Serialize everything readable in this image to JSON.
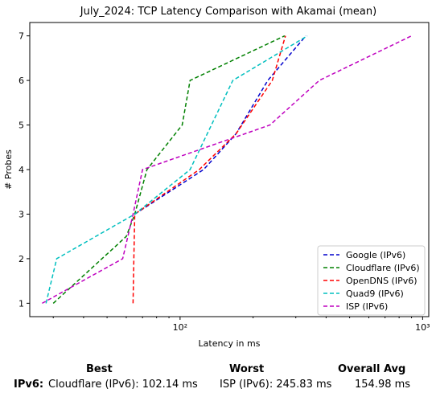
{
  "chart_data": {
    "type": "line",
    "title": "July_2024: TCP Latency Comparison with Akamai (mean)",
    "xlabel": "Latency in ms",
    "ylabel": "# Probes",
    "xscale": "log",
    "xlim": [
      24,
      1060
    ],
    "ylim": [
      0.7,
      7.3
    ],
    "x_ticks": [
      {
        "value": 100,
        "label": "10²"
      },
      {
        "value": 1000,
        "label": "10³"
      }
    ],
    "y_ticks": [
      1,
      2,
      3,
      4,
      5,
      6,
      7
    ],
    "grid": false,
    "legend_position": "lower-right",
    "series": [
      {
        "name": "Google (IPv6)",
        "color": "#0000cc",
        "points": [
          [
            65,
            3
          ],
          [
            125,
            4
          ],
          [
            170,
            4.8
          ],
          [
            230,
            6
          ],
          [
            330,
            7
          ]
        ]
      },
      {
        "name": "Cloudflare (IPv6)",
        "color": "#008000",
        "points": [
          [
            30,
            1
          ],
          [
            60,
            2.5
          ],
          [
            65,
            3
          ],
          [
            73,
            4
          ],
          [
            102,
            5
          ],
          [
            110,
            6
          ],
          [
            270,
            7
          ]
        ]
      },
      {
        "name": "OpenDNS (IPv6)",
        "color": "#ff0000",
        "points": [
          [
            64,
            1
          ],
          [
            64.5,
            2
          ],
          [
            65,
            3
          ],
          [
            120,
            4
          ],
          [
            170,
            4.8
          ],
          [
            240,
            6
          ],
          [
            272,
            7
          ]
        ]
      },
      {
        "name": "Quad9 (IPv6)",
        "color": "#00bfbf",
        "points": [
          [
            28,
            1
          ],
          [
            31,
            2
          ],
          [
            65,
            3
          ],
          [
            110,
            4
          ],
          [
            165,
            6
          ],
          [
            335,
            7
          ]
        ]
      },
      {
        "name": "ISP (IPv6)",
        "color": "#bf00bf",
        "points": [
          [
            27,
            1
          ],
          [
            58,
            2
          ],
          [
            64,
            3
          ],
          [
            70,
            4
          ],
          [
            235,
            5
          ],
          [
            375,
            6
          ],
          [
            900,
            7
          ]
        ]
      }
    ]
  },
  "summary": {
    "headers": {
      "best": "Best",
      "worst": "Worst",
      "overall": "Overall Avg"
    },
    "rows": [
      {
        "label": "IPv6:",
        "best": "Cloudflare (IPv6): 102.14 ms",
        "worst": "ISP (IPv6): 245.83 ms",
        "overall": "154.98 ms"
      }
    ]
  }
}
